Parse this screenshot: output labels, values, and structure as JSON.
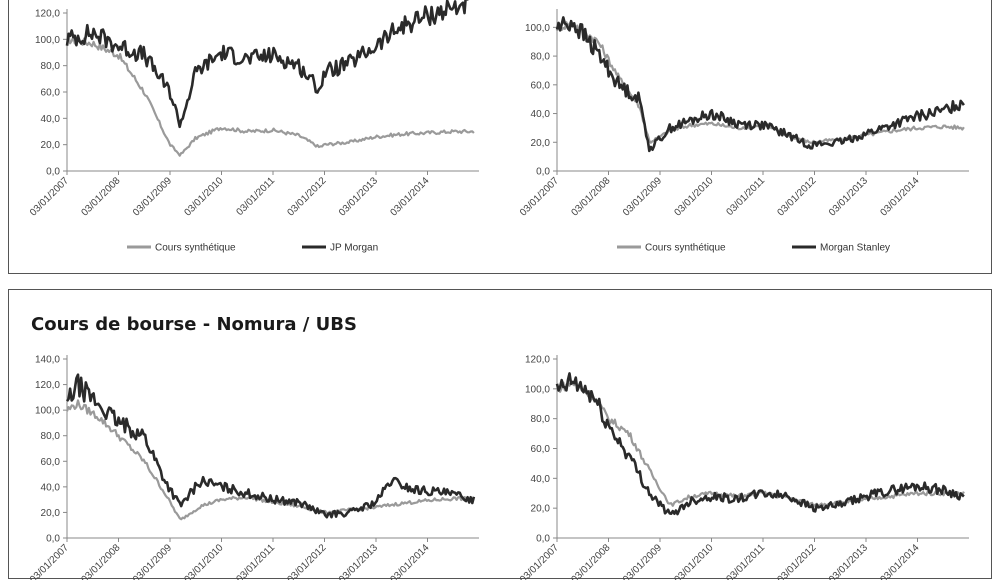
{
  "bottom_section": {
    "title": "Cours de bourse - Nomura / UBS"
  },
  "colors": {
    "synthetic": "#9a9a9a",
    "bank": "#2a2a2a",
    "axis": "#888888"
  },
  "chart_data": [
    {
      "type": "line",
      "title": "",
      "ylim": [
        0,
        120
      ],
      "yticks": [
        "0,0",
        "20,0",
        "40,0",
        "60,0",
        "80,0",
        "100,0",
        "120,0"
      ],
      "grid": false,
      "legend": "bottom",
      "xticks": [
        "03/01/2007",
        "03/01/2008",
        "03/01/2009",
        "03/01/2010",
        "03/01/2011",
        "03/01/2012",
        "03/01/2013",
        "03/01/2014"
      ],
      "x": [
        2007.0,
        2007.5,
        2008.0,
        2008.5,
        2009.0,
        2009.2,
        2009.5,
        2010.0,
        2010.5,
        2011.0,
        2011.5,
        2011.9,
        2012.0,
        2012.5,
        2013.0,
        2013.5,
        2014.0,
        2014.5,
        2014.9
      ],
      "series": [
        {
          "name": "Cours synthétique",
          "values": [
            100,
            97,
            88,
            60,
            20,
            12,
            25,
            33,
            30,
            31,
            27,
            18,
            20,
            22,
            26,
            28,
            29,
            30,
            30
          ]
        },
        {
          "name": "JP Morgan",
          "values": [
            100,
            105,
            95,
            88,
            60,
            35,
            75,
            90,
            85,
            88,
            80,
            62,
            75,
            82,
            95,
            110,
            118,
            124,
            130
          ]
        }
      ]
    },
    {
      "type": "line",
      "title": "",
      "ylim": [
        0,
        110
      ],
      "yticks": [
        "0,0",
        "20,0",
        "40,0",
        "60,0",
        "80,0",
        "100,0"
      ],
      "grid": false,
      "legend": "bottom",
      "xticks": [
        "03/01/2007",
        "03/01/2008",
        "03/01/2009",
        "03/01/2010",
        "03/01/2011",
        "03/01/2012",
        "03/01/2013",
        "03/01/2014"
      ],
      "x": [
        2007.0,
        2007.3,
        2007.8,
        2008.2,
        2008.6,
        2008.8,
        2009.2,
        2009.6,
        2010.0,
        2010.5,
        2011.0,
        2011.5,
        2011.9,
        2012.5,
        2013.0,
        2013.5,
        2014.0,
        2014.5,
        2014.9
      ],
      "series": [
        {
          "name": "Cours synthétique",
          "values": [
            100,
            103,
            90,
            65,
            45,
            20,
            28,
            32,
            33,
            30,
            32,
            25,
            20,
            22,
            25,
            28,
            30,
            31,
            30
          ]
        },
        {
          "name": "Morgan Stanley",
          "values": [
            100,
            104,
            82,
            60,
            50,
            15,
            30,
            35,
            40,
            33,
            32,
            25,
            18,
            20,
            26,
            32,
            38,
            42,
            48
          ]
        }
      ]
    },
    {
      "type": "line",
      "title": "",
      "ylim": [
        0,
        140
      ],
      "yticks": [
        "0,0",
        "20,0",
        "40,0",
        "60,0",
        "80,0",
        "100,0",
        "120,0",
        "140,0"
      ],
      "grid": false,
      "legend": "bottom",
      "xticks": [
        "03/01/2007",
        "03/01/2008",
        "03/01/2009",
        "03/01/2010",
        "03/01/2011",
        "03/01/2012",
        "03/01/2013",
        "03/01/2014"
      ],
      "x": [
        2007.0,
        2007.2,
        2007.6,
        2008.0,
        2008.5,
        2008.9,
        2009.2,
        2009.6,
        2010.0,
        2010.5,
        2011.0,
        2011.5,
        2012.0,
        2012.5,
        2013.0,
        2013.3,
        2013.7,
        2014.2,
        2014.6,
        2014.9
      ],
      "series": [
        {
          "name": "",
          "values": [
            100,
            105,
            95,
            80,
            60,
            35,
            14,
            25,
            30,
            32,
            28,
            25,
            20,
            22,
            24,
            26,
            28,
            30,
            31,
            30
          ]
        },
        {
          "name": "",
          "values": [
            105,
            120,
            105,
            90,
            80,
            45,
            25,
            45,
            40,
            35,
            30,
            28,
            18,
            20,
            28,
            45,
            38,
            36,
            33,
            30
          ]
        }
      ]
    },
    {
      "type": "line",
      "title": "",
      "ylim": [
        0,
        120
      ],
      "yticks": [
        "0,0",
        "20,0",
        "40,0",
        "60,0",
        "80,0",
        "100,0",
        "120,0"
      ],
      "grid": false,
      "legend": "bottom",
      "xticks": [
        "03/01/2007",
        "03/01/2008",
        "03/01/2009",
        "03/01/2010",
        "03/01/2011",
        "03/01/2012",
        "03/01/2013",
        "03/01/2014"
      ],
      "x": [
        2007.0,
        2007.3,
        2007.7,
        2008.0,
        2008.4,
        2008.8,
        2009.2,
        2009.6,
        2010.0,
        2010.5,
        2011.0,
        2011.5,
        2012.0,
        2012.5,
        2013.0,
        2013.5,
        2014.0,
        2014.5,
        2014.9
      ],
      "series": [
        {
          "name": "",
          "values": [
            100,
            104,
            95,
            80,
            70,
            45,
            22,
            28,
            30,
            28,
            30,
            27,
            22,
            24,
            26,
            28,
            30,
            30,
            30
          ]
        },
        {
          "name": "",
          "values": [
            98,
            105,
            95,
            75,
            55,
            30,
            15,
            25,
            28,
            26,
            30,
            28,
            20,
            22,
            28,
            32,
            35,
            32,
            28
          ]
        }
      ]
    }
  ]
}
